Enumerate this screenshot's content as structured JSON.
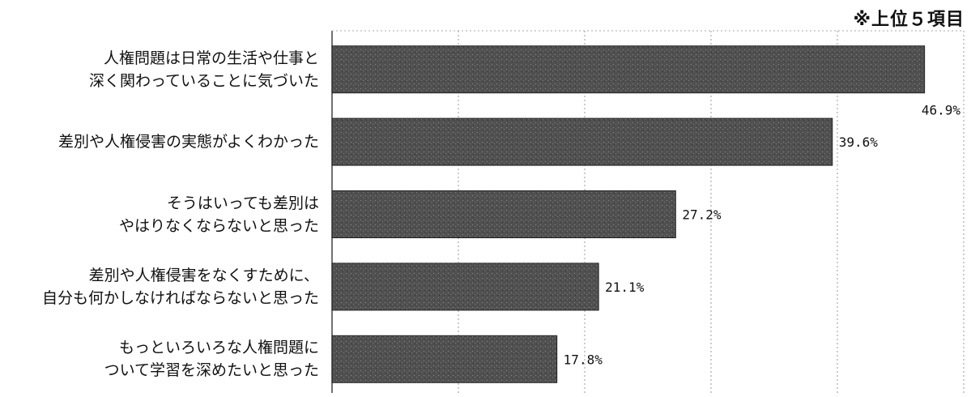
{
  "chart_data": {
    "type": "bar",
    "orientation": "horizontal",
    "note": "※上位５項目",
    "categories": [
      [
        "人権問題は日常の生活や仕事と",
        "深く関わっていることに気づいた"
      ],
      [
        "差別や人権侵害の実態がよくわかった"
      ],
      [
        "そうはいっても差別は",
        "やはりなくならないと思った"
      ],
      [
        "差別や人権侵害をなくすために、",
        "自分も何かしなければならないと思った"
      ],
      [
        "もっといろいろな人権問題に",
        "ついて学習を深めたいと思った"
      ]
    ],
    "values": [
      46.9,
      39.6,
      27.2,
      21.1,
      17.8
    ],
    "value_labels": [
      "46.9%",
      "39.6%",
      "27.2%",
      "21.1%",
      "17.8%"
    ],
    "xlim": [
      0,
      50
    ],
    "grid": true,
    "bar_color": "#555555"
  }
}
